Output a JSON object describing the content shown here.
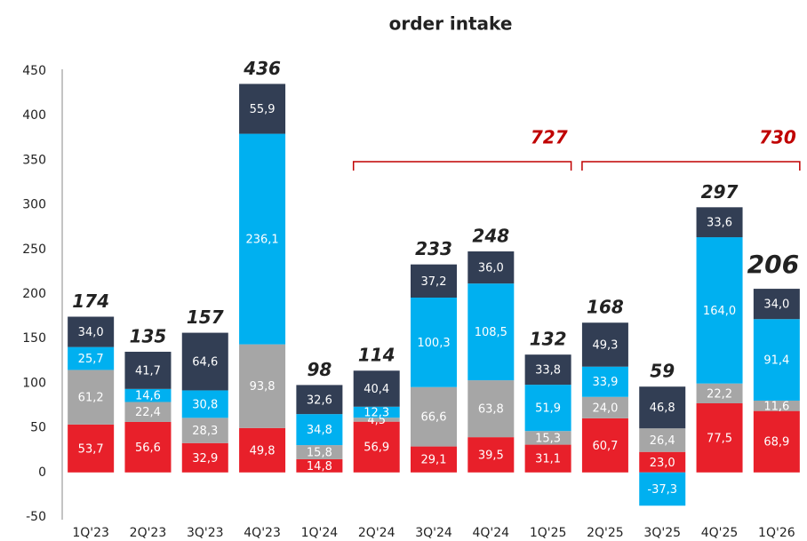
{
  "chart_data": {
    "type": "stacked_bar",
    "title": "order intake",
    "categories": [
      "1Q'23",
      "2Q'23",
      "3Q'23",
      "4Q'23",
      "1Q'24",
      "2Q'24",
      "3Q'24",
      "4Q'24",
      "1Q'25",
      "2Q'25",
      "3Q'25",
      "4Q'25",
      "1Q'26"
    ],
    "series": [
      {
        "color": "#e8202a",
        "values": [
          53.7,
          56.6,
          32.9,
          49.8,
          14.8,
          56.9,
          29.1,
          39.5,
          31.1,
          60.7,
          23.0,
          77.5,
          68.9
        ],
        "value_labels": [
          "53,7",
          "56,6",
          "32,9",
          "49,8",
          "14,8",
          "56,9",
          "29,1",
          "39,5",
          "31,1",
          "60,7",
          "23,0",
          "77,5",
          "68,9"
        ]
      },
      {
        "color": "#a6a6a6",
        "values": [
          61.2,
          22.4,
          28.3,
          93.8,
          15.8,
          4.5,
          66.6,
          63.8,
          15.3,
          24.0,
          26.4,
          22.2,
          11.6
        ],
        "value_labels": [
          "61,2",
          "22,4",
          "28,3",
          "93,8",
          "15,8",
          "4,5",
          "66,6",
          "63,8",
          "15,3",
          "24,0",
          "26,4",
          "22,2",
          "11,6"
        ]
      },
      {
        "color": "#00b0f0",
        "values": [
          25.7,
          14.6,
          30.8,
          236.1,
          34.8,
          12.3,
          100.3,
          108.5,
          51.9,
          33.9,
          -37.3,
          164.0,
          91.4
        ],
        "value_labels": [
          "25,7",
          "14,6",
          "30,8",
          "236,1",
          "34,8",
          "12,3",
          "100,3",
          "108,5",
          "51,9",
          "33,9",
          "-37,3",
          "164,0",
          "91,4"
        ]
      },
      {
        "color": "#323e54",
        "values": [
          34.0,
          41.7,
          64.6,
          55.9,
          32.6,
          40.4,
          37.2,
          36.0,
          33.8,
          49.3,
          46.8,
          33.6,
          34.0
        ],
        "value_labels": [
          "34,0",
          "41,7",
          "64,6",
          "55,9",
          "32,6",
          "40,4",
          "37,2",
          "36,0",
          "33,8",
          "49,3",
          "46,8",
          "33,6",
          "34,0"
        ]
      }
    ],
    "totals": [
      174,
      135,
      157,
      436,
      98,
      114,
      233,
      248,
      132,
      168,
      59,
      297,
      206
    ],
    "brackets": [
      {
        "value": 727,
        "from": "2Q'24",
        "to": "1Q'25",
        "color": "#c00000"
      },
      {
        "value": 730,
        "from": "2Q'25",
        "to": "1Q'26",
        "color": "#c00000"
      }
    ],
    "ylim": [
      -50,
      450
    ],
    "yticks": [
      -50,
      0,
      50,
      100,
      150,
      200,
      250,
      300,
      350,
      400,
      450
    ],
    "grid": false
  }
}
